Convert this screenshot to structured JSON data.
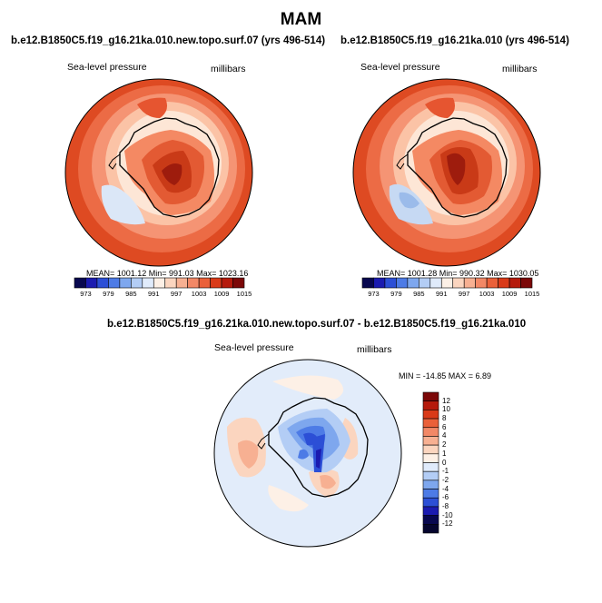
{
  "figure": {
    "title": "MAM"
  },
  "panels": [
    {
      "title": "b.e12.B1850C5.f19_g16.21ka.010.new.topo.surf.07 (yrs 496-514)",
      "variable": "Sea-level pressure",
      "units": "millibars",
      "stats": "MEAN= 1001.12  Min= 991.03  Max= 1023.16"
    },
    {
      "title": "b.e12.B1850C5.f19_g16.21ka.010 (yrs 496-514)",
      "variable": "Sea-level pressure",
      "units": "millibars",
      "stats": "MEAN= 1001.28  Min= 990.32  Max= 1030.05"
    },
    {
      "title": "b.e12.B1850C5.f19_g16.21ka.010.new.topo.surf.07 - b.e12.B1850C5.f19_g16.21ka.010",
      "variable": "Sea-level pressure",
      "units": "millibars",
      "stats": "MIN = -14.85 MAX =   6.89"
    }
  ],
  "colorbar_abs": {
    "ticks": [
      "973",
      "979",
      "985",
      "991",
      "997",
      "1003",
      "1009",
      "1015"
    ],
    "colors": [
      "#08084f",
      "#1b1bb0",
      "#2c4fd6",
      "#4d7be6",
      "#7ea7ee",
      "#b3cdf5",
      "#e0ebfb",
      "#fdf0e6",
      "#fbd5bf",
      "#f7b092",
      "#f28866",
      "#ea6039",
      "#d93a18",
      "#b51a0c",
      "#7c0808"
    ]
  },
  "colorbar_diff": {
    "ticks": [
      "12",
      "10",
      "8",
      "6",
      "4",
      "2",
      "1",
      "0",
      "-1",
      "-2",
      "-4",
      "-6",
      "-8",
      "-10",
      "-12"
    ],
    "colors": [
      "#7c0808",
      "#b51a0c",
      "#d93a18",
      "#ea6039",
      "#f28866",
      "#f7b092",
      "#fbd5bf",
      "#fdf0e6",
      "#e0ebfb",
      "#b3cdf5",
      "#7ea7ee",
      "#4d7be6",
      "#2c4fd6",
      "#1b1bb0",
      "#08084f",
      "#05052e"
    ]
  }
}
